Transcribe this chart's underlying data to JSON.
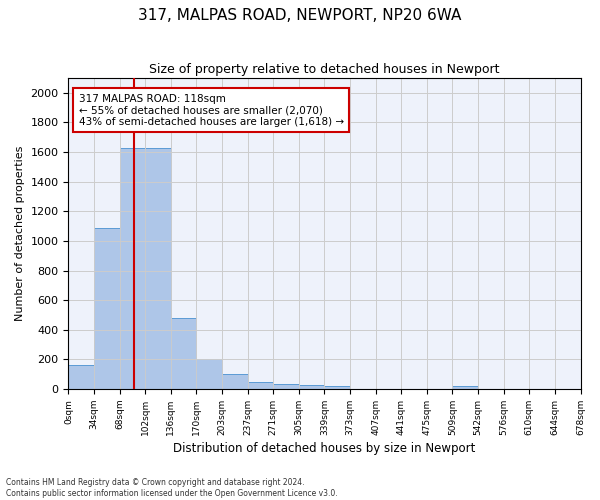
{
  "title": "317, MALPAS ROAD, NEWPORT, NP20 6WA",
  "subtitle": "Size of property relative to detached houses in Newport",
  "xlabel": "Distribution of detached houses by size in Newport",
  "ylabel": "Number of detached properties",
  "bar_values": [
    165,
    1090,
    1625,
    1625,
    480,
    200,
    100,
    45,
    35,
    25,
    20,
    0,
    0,
    0,
    0,
    20,
    0,
    0,
    0,
    0
  ],
  "categories": [
    "0sqm",
    "34sqm",
    "68sqm",
    "102sqm",
    "136sqm",
    "170sqm",
    "203sqm",
    "237sqm",
    "271sqm",
    "305sqm",
    "339sqm",
    "373sqm",
    "407sqm",
    "441sqm",
    "475sqm",
    "509sqm",
    "542sqm",
    "576sqm",
    "610sqm",
    "644sqm",
    "678sqm"
  ],
  "bar_color": "#aec6e8",
  "bar_edge_color": "#5b9bd5",
  "vline_x": 2.55,
  "vline_color": "#cc0000",
  "annotation_text": "317 MALPAS ROAD: 118sqm\n← 55% of detached houses are smaller (2,070)\n43% of semi-detached houses are larger (1,618) →",
  "annotation_box_color": "#ffffff",
  "annotation_box_edge": "#cc0000",
  "ylim": [
    0,
    2100
  ],
  "yticks": [
    0,
    200,
    400,
    600,
    800,
    1000,
    1200,
    1400,
    1600,
    1800,
    2000
  ],
  "grid_color": "#cccccc",
  "background_color": "#eef2fb",
  "footer_line1": "Contains HM Land Registry data © Crown copyright and database right 2024.",
  "footer_line2": "Contains public sector information licensed under the Open Government Licence v3.0."
}
